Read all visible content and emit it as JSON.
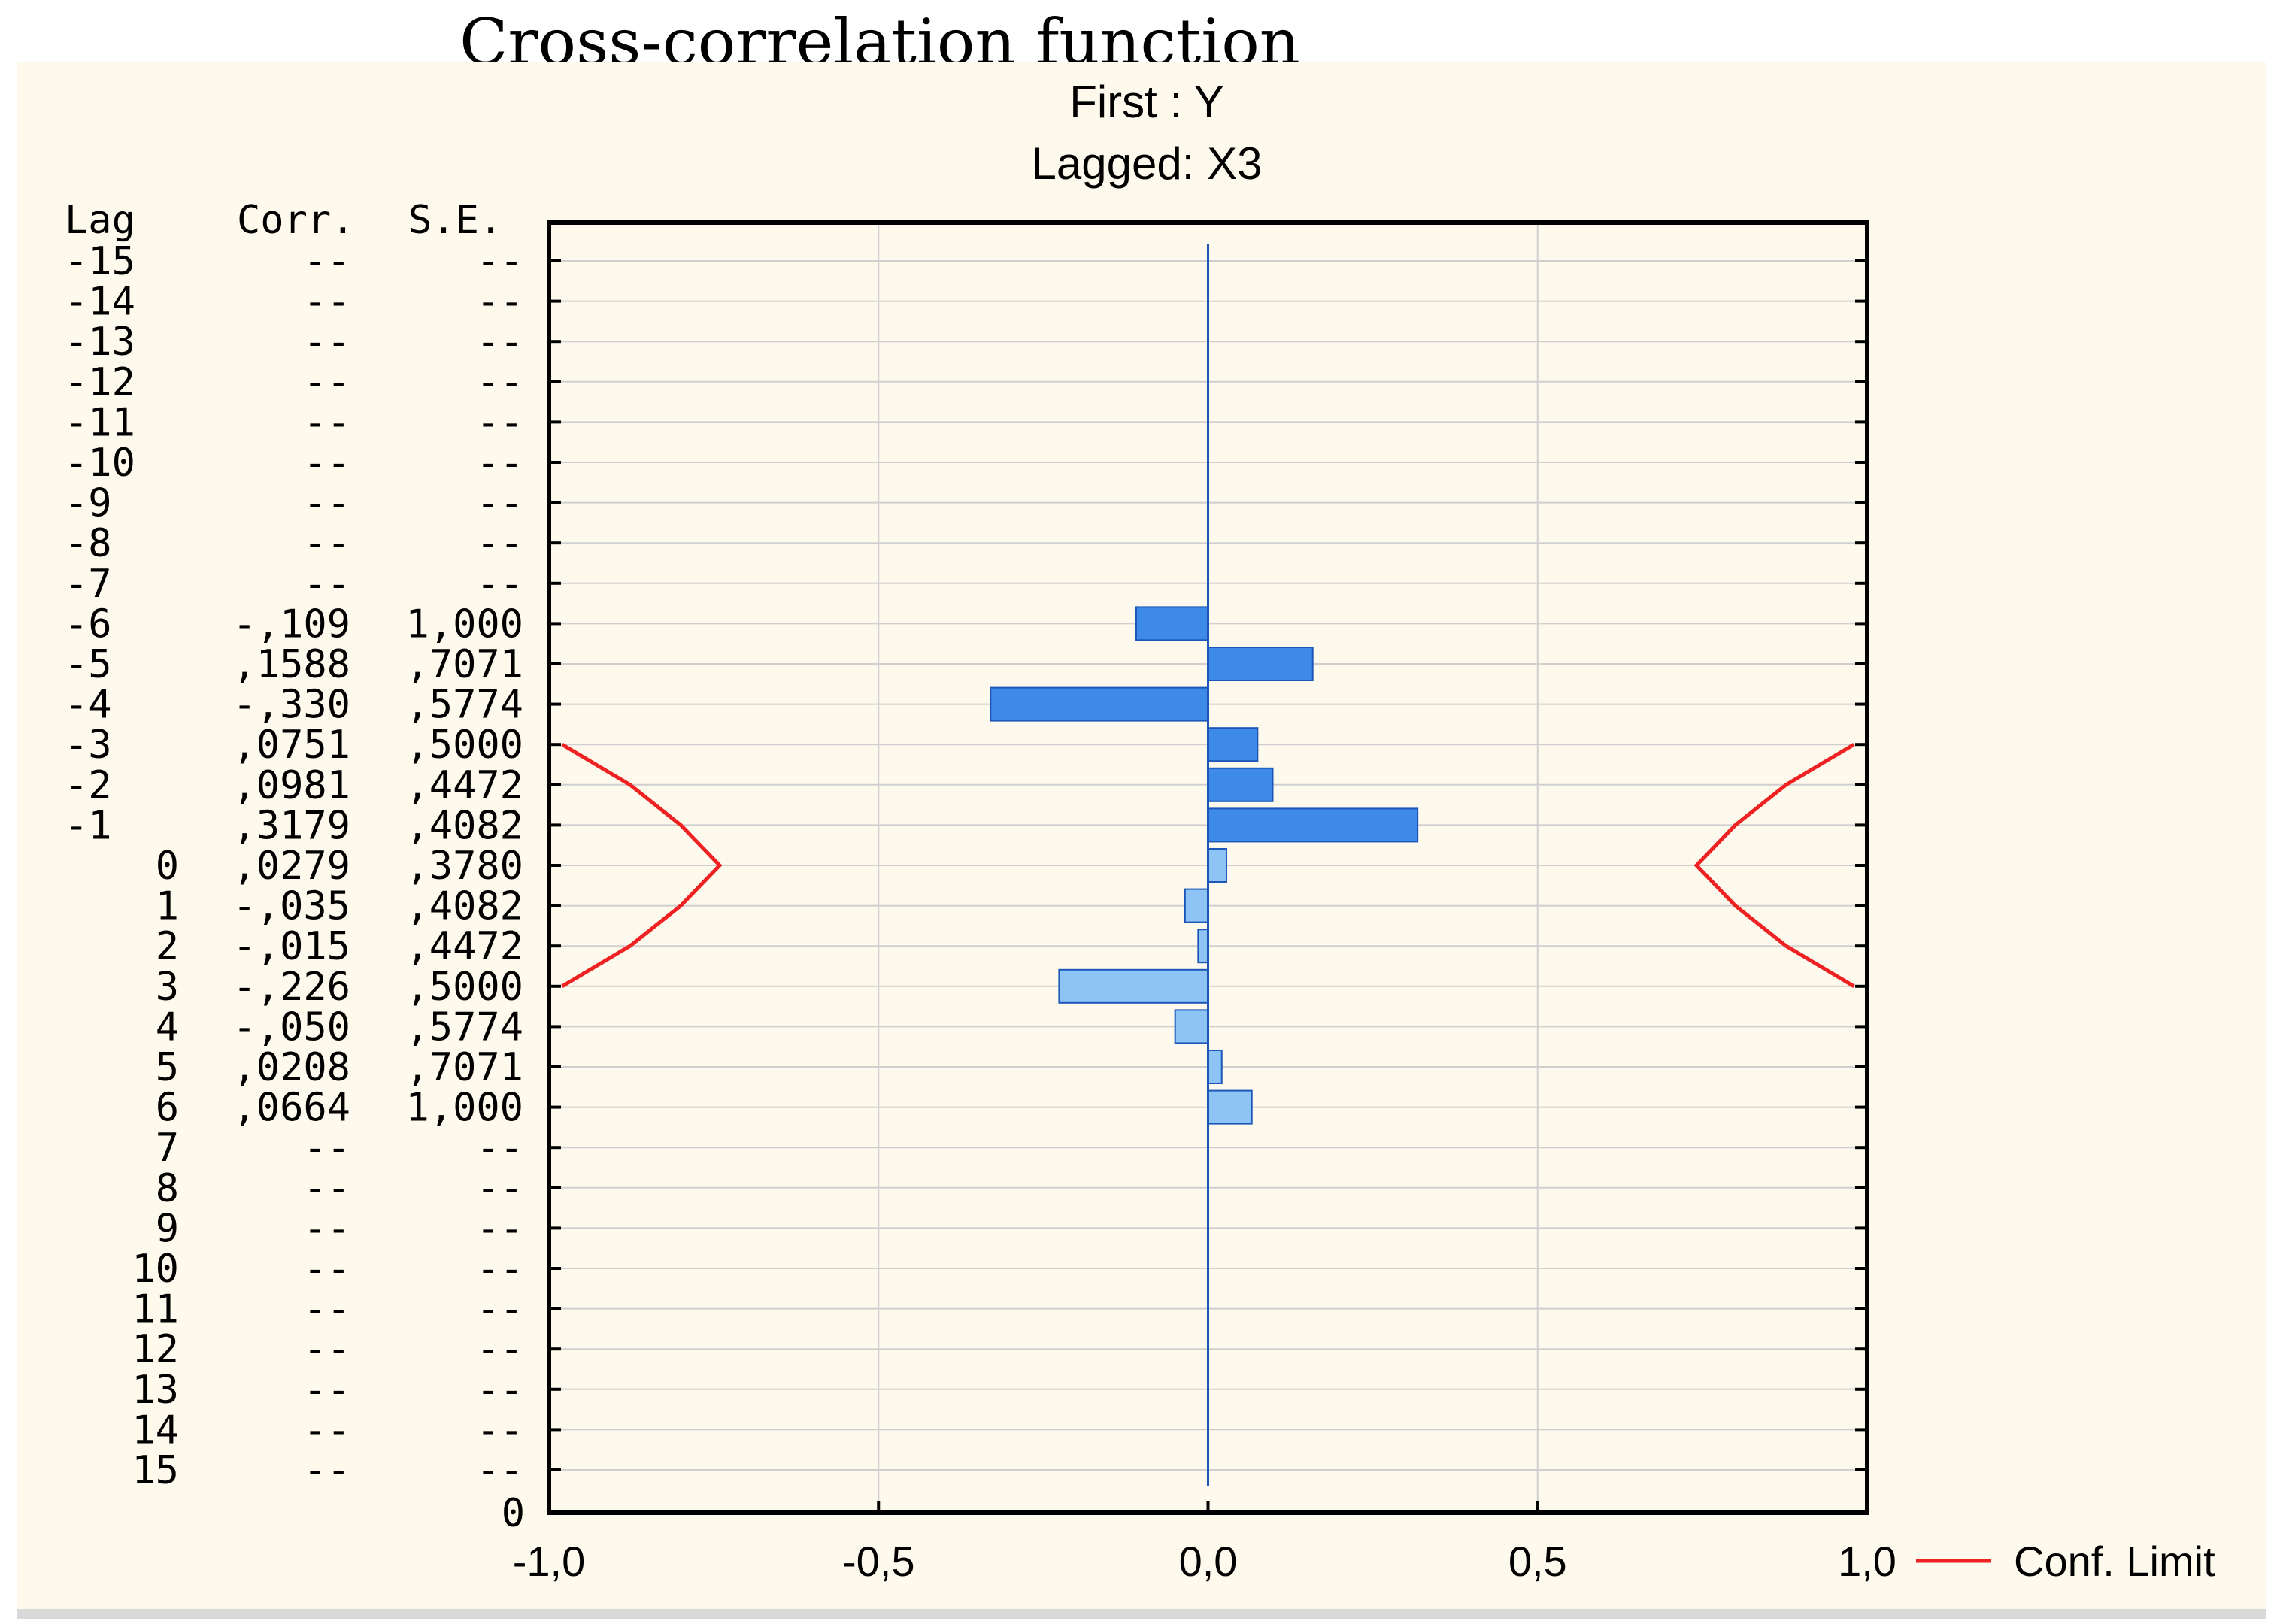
{
  "figure_title": "Cross-correlation function",
  "chart_data": {
    "type": "bar",
    "orientation": "horizontal",
    "subtitle_first": "First : Y",
    "subtitle_lagged": "Lagged: X3",
    "table_headers": {
      "lag": "Lag",
      "corr": "Corr.",
      "se": "S.E."
    },
    "rows": [
      {
        "lag": "-15",
        "corr_text": "--",
        "se_text": "--",
        "corr": null
      },
      {
        "lag": "-14",
        "corr_text": "--",
        "se_text": "--",
        "corr": null
      },
      {
        "lag": "-13",
        "corr_text": "--",
        "se_text": "--",
        "corr": null
      },
      {
        "lag": "-12",
        "corr_text": "--",
        "se_text": "--",
        "corr": null
      },
      {
        "lag": "-11",
        "corr_text": "--",
        "se_text": "--",
        "corr": null
      },
      {
        "lag": "-10",
        "corr_text": "--",
        "se_text": "--",
        "corr": null
      },
      {
        "lag": "-9",
        "corr_text": "--",
        "se_text": "--",
        "corr": null
      },
      {
        "lag": "-8",
        "corr_text": "--",
        "se_text": "--",
        "corr": null
      },
      {
        "lag": "-7",
        "corr_text": "--",
        "se_text": "--",
        "corr": null
      },
      {
        "lag": "-6",
        "corr_text": "-,109",
        "se_text": "1,000",
        "corr": -0.109
      },
      {
        "lag": "-5",
        "corr_text": ",1588",
        "se_text": ",7071",
        "corr": 0.1588
      },
      {
        "lag": "-4",
        "corr_text": "-,330",
        "se_text": ",5774",
        "corr": -0.33
      },
      {
        "lag": "-3",
        "corr_text": ",0751",
        "se_text": ",5000",
        "corr": 0.0751
      },
      {
        "lag": "-2",
        "corr_text": ",0981",
        "se_text": ",4472",
        "corr": 0.0981
      },
      {
        "lag": "-1",
        "corr_text": ",3179",
        "se_text": ",4082",
        "corr": 0.3179
      },
      {
        "lag": "0",
        "corr_text": ",0279",
        "se_text": ",3780",
        "corr": 0.0279
      },
      {
        "lag": "1",
        "corr_text": "-,035",
        "se_text": ",4082",
        "corr": -0.035
      },
      {
        "lag": "2",
        "corr_text": "-,015",
        "se_text": ",4472",
        "corr": -0.015
      },
      {
        "lag": "3",
        "corr_text": "-,226",
        "se_text": ",5000",
        "corr": -0.226
      },
      {
        "lag": "4",
        "corr_text": "-,050",
        "se_text": ",5774",
        "corr": -0.05
      },
      {
        "lag": "5",
        "corr_text": ",0208",
        "se_text": ",7071",
        "corr": 0.0208
      },
      {
        "lag": "6",
        "corr_text": ",0664",
        "se_text": "1,000",
        "corr": 0.0664
      },
      {
        "lag": "7",
        "corr_text": "--",
        "se_text": "--",
        "corr": null
      },
      {
        "lag": "8",
        "corr_text": "--",
        "se_text": "--",
        "corr": null
      },
      {
        "lag": "9",
        "corr_text": "--",
        "se_text": "--",
        "corr": null
      },
      {
        "lag": "10",
        "corr_text": "--",
        "se_text": "--",
        "corr": null
      },
      {
        "lag": "11",
        "corr_text": "--",
        "se_text": "--",
        "corr": null
      },
      {
        "lag": "12",
        "corr_text": "--",
        "se_text": "--",
        "corr": null
      },
      {
        "lag": "13",
        "corr_text": "--",
        "se_text": "--",
        "corr": null
      },
      {
        "lag": "14",
        "corr_text": "--",
        "se_text": "--",
        "corr": null
      },
      {
        "lag": "15",
        "corr_text": "--",
        "se_text": "--",
        "corr": null
      }
    ],
    "zero_label": "0",
    "xlim": [
      -1.0,
      1.0
    ],
    "x_ticks": [
      -1.0,
      -0.5,
      0.0,
      0.5,
      1.0
    ],
    "x_tick_labels": [
      "-1,0",
      "-0,5",
      "0,0",
      "0,5",
      "1,0"
    ],
    "conf_limit": {
      "label": "Conf. Limit",
      "lags": [
        "-3",
        "-2",
        "-1",
        "0",
        "1",
        "2",
        "3"
      ],
      "values": [
        0.98,
        0.877,
        0.8,
        0.741,
        0.8,
        0.877,
        0.98
      ]
    },
    "colors": {
      "bar_dark": "#3d8ae8",
      "bar_light": "#8ec3f6",
      "bar_stroke": "#1b56b8",
      "zero_line": "#1b56b8",
      "conf_line": "#ee2222",
      "grid": "#cfcfcf",
      "panel_bg": "#fdf9ec"
    }
  }
}
